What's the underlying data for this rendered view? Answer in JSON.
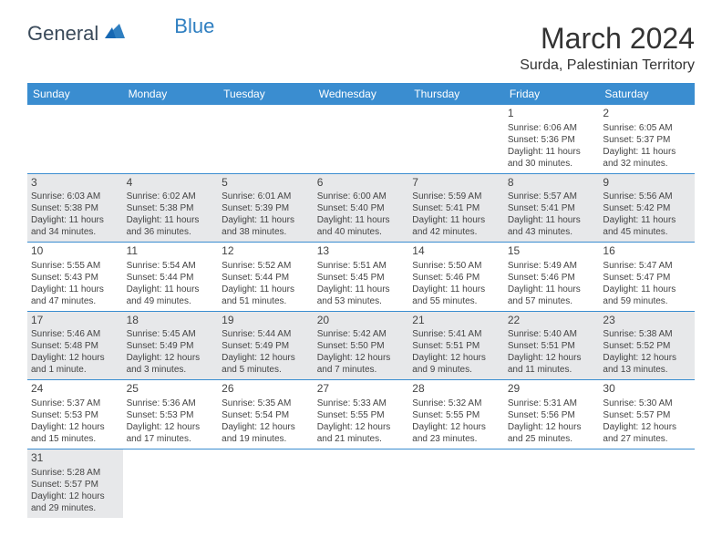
{
  "logo": {
    "general": "General",
    "blue": "Blue"
  },
  "title": "March 2024",
  "location": "Surda, Palestinian Territory",
  "weekdays": [
    "Sunday",
    "Monday",
    "Tuesday",
    "Wednesday",
    "Thursday",
    "Friday",
    "Saturday"
  ],
  "colors": {
    "headerBar": "#3a8dd0",
    "shaded": "#e7e8ea",
    "logoBlue": "#2f7fc1",
    "logoText": "#3a4a5a"
  },
  "weeks": [
    [
      null,
      null,
      null,
      null,
      null,
      {
        "n": "1",
        "sunrise": "Sunrise: 6:06 AM",
        "sunset": "Sunset: 5:36 PM",
        "day": "Daylight: 11 hours and 30 minutes.",
        "shade": false
      },
      {
        "n": "2",
        "sunrise": "Sunrise: 6:05 AM",
        "sunset": "Sunset: 5:37 PM",
        "day": "Daylight: 11 hours and 32 minutes.",
        "shade": false
      }
    ],
    [
      {
        "n": "3",
        "sunrise": "Sunrise: 6:03 AM",
        "sunset": "Sunset: 5:38 PM",
        "day": "Daylight: 11 hours and 34 minutes.",
        "shade": true
      },
      {
        "n": "4",
        "sunrise": "Sunrise: 6:02 AM",
        "sunset": "Sunset: 5:38 PM",
        "day": "Daylight: 11 hours and 36 minutes.",
        "shade": true
      },
      {
        "n": "5",
        "sunrise": "Sunrise: 6:01 AM",
        "sunset": "Sunset: 5:39 PM",
        "day": "Daylight: 11 hours and 38 minutes.",
        "shade": true
      },
      {
        "n": "6",
        "sunrise": "Sunrise: 6:00 AM",
        "sunset": "Sunset: 5:40 PM",
        "day": "Daylight: 11 hours and 40 minutes.",
        "shade": true
      },
      {
        "n": "7",
        "sunrise": "Sunrise: 5:59 AM",
        "sunset": "Sunset: 5:41 PM",
        "day": "Daylight: 11 hours and 42 minutes.",
        "shade": true
      },
      {
        "n": "8",
        "sunrise": "Sunrise: 5:57 AM",
        "sunset": "Sunset: 5:41 PM",
        "day": "Daylight: 11 hours and 43 minutes.",
        "shade": true
      },
      {
        "n": "9",
        "sunrise": "Sunrise: 5:56 AM",
        "sunset": "Sunset: 5:42 PM",
        "day": "Daylight: 11 hours and 45 minutes.",
        "shade": true
      }
    ],
    [
      {
        "n": "10",
        "sunrise": "Sunrise: 5:55 AM",
        "sunset": "Sunset: 5:43 PM",
        "day": "Daylight: 11 hours and 47 minutes.",
        "shade": false
      },
      {
        "n": "11",
        "sunrise": "Sunrise: 5:54 AM",
        "sunset": "Sunset: 5:44 PM",
        "day": "Daylight: 11 hours and 49 minutes.",
        "shade": false
      },
      {
        "n": "12",
        "sunrise": "Sunrise: 5:52 AM",
        "sunset": "Sunset: 5:44 PM",
        "day": "Daylight: 11 hours and 51 minutes.",
        "shade": false
      },
      {
        "n": "13",
        "sunrise": "Sunrise: 5:51 AM",
        "sunset": "Sunset: 5:45 PM",
        "day": "Daylight: 11 hours and 53 minutes.",
        "shade": false
      },
      {
        "n": "14",
        "sunrise": "Sunrise: 5:50 AM",
        "sunset": "Sunset: 5:46 PM",
        "day": "Daylight: 11 hours and 55 minutes.",
        "shade": false
      },
      {
        "n": "15",
        "sunrise": "Sunrise: 5:49 AM",
        "sunset": "Sunset: 5:46 PM",
        "day": "Daylight: 11 hours and 57 minutes.",
        "shade": false
      },
      {
        "n": "16",
        "sunrise": "Sunrise: 5:47 AM",
        "sunset": "Sunset: 5:47 PM",
        "day": "Daylight: 11 hours and 59 minutes.",
        "shade": false
      }
    ],
    [
      {
        "n": "17",
        "sunrise": "Sunrise: 5:46 AM",
        "sunset": "Sunset: 5:48 PM",
        "day": "Daylight: 12 hours and 1 minute.",
        "shade": true
      },
      {
        "n": "18",
        "sunrise": "Sunrise: 5:45 AM",
        "sunset": "Sunset: 5:49 PM",
        "day": "Daylight: 12 hours and 3 minutes.",
        "shade": true
      },
      {
        "n": "19",
        "sunrise": "Sunrise: 5:44 AM",
        "sunset": "Sunset: 5:49 PM",
        "day": "Daylight: 12 hours and 5 minutes.",
        "shade": true
      },
      {
        "n": "20",
        "sunrise": "Sunrise: 5:42 AM",
        "sunset": "Sunset: 5:50 PM",
        "day": "Daylight: 12 hours and 7 minutes.",
        "shade": true
      },
      {
        "n": "21",
        "sunrise": "Sunrise: 5:41 AM",
        "sunset": "Sunset: 5:51 PM",
        "day": "Daylight: 12 hours and 9 minutes.",
        "shade": true
      },
      {
        "n": "22",
        "sunrise": "Sunrise: 5:40 AM",
        "sunset": "Sunset: 5:51 PM",
        "day": "Daylight: 12 hours and 11 minutes.",
        "shade": true
      },
      {
        "n": "23",
        "sunrise": "Sunrise: 5:38 AM",
        "sunset": "Sunset: 5:52 PM",
        "day": "Daylight: 12 hours and 13 minutes.",
        "shade": true
      }
    ],
    [
      {
        "n": "24",
        "sunrise": "Sunrise: 5:37 AM",
        "sunset": "Sunset: 5:53 PM",
        "day": "Daylight: 12 hours and 15 minutes.",
        "shade": false
      },
      {
        "n": "25",
        "sunrise": "Sunrise: 5:36 AM",
        "sunset": "Sunset: 5:53 PM",
        "day": "Daylight: 12 hours and 17 minutes.",
        "shade": false
      },
      {
        "n": "26",
        "sunrise": "Sunrise: 5:35 AM",
        "sunset": "Sunset: 5:54 PM",
        "day": "Daylight: 12 hours and 19 minutes.",
        "shade": false
      },
      {
        "n": "27",
        "sunrise": "Sunrise: 5:33 AM",
        "sunset": "Sunset: 5:55 PM",
        "day": "Daylight: 12 hours and 21 minutes.",
        "shade": false
      },
      {
        "n": "28",
        "sunrise": "Sunrise: 5:32 AM",
        "sunset": "Sunset: 5:55 PM",
        "day": "Daylight: 12 hours and 23 minutes.",
        "shade": false
      },
      {
        "n": "29",
        "sunrise": "Sunrise: 5:31 AM",
        "sunset": "Sunset: 5:56 PM",
        "day": "Daylight: 12 hours and 25 minutes.",
        "shade": false
      },
      {
        "n": "30",
        "sunrise": "Sunrise: 5:30 AM",
        "sunset": "Sunset: 5:57 PM",
        "day": "Daylight: 12 hours and 27 minutes.",
        "shade": false
      }
    ],
    [
      {
        "n": "31",
        "sunrise": "Sunrise: 5:28 AM",
        "sunset": "Sunset: 5:57 PM",
        "day": "Daylight: 12 hours and 29 minutes.",
        "shade": true
      },
      null,
      null,
      null,
      null,
      null,
      null
    ]
  ]
}
